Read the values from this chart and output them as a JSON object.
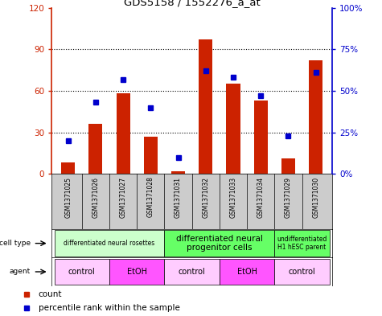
{
  "title": "GDS5158 / 1552276_a_at",
  "samples": [
    "GSM1371025",
    "GSM1371026",
    "GSM1371027",
    "GSM1371028",
    "GSM1371031",
    "GSM1371032",
    "GSM1371033",
    "GSM1371034",
    "GSM1371029",
    "GSM1371030"
  ],
  "counts": [
    8,
    36,
    58,
    27,
    2,
    97,
    65,
    53,
    11,
    82
  ],
  "percentiles": [
    20,
    43,
    57,
    40,
    10,
    62,
    58,
    47,
    23,
    61
  ],
  "ylim_left": [
    0,
    120
  ],
  "ylim_right": [
    0,
    100
  ],
  "yticks_left": [
    0,
    30,
    60,
    90,
    120
  ],
  "yticks_right": [
    0,
    25,
    50,
    75,
    100
  ],
  "ytick_labels_left": [
    "0",
    "30",
    "60",
    "90",
    "120"
  ],
  "ytick_labels_right": [
    "0%",
    "25%",
    "50%",
    "75%",
    "100%"
  ],
  "bar_color": "#cc2200",
  "percentile_color": "#0000cc",
  "bar_width": 0.5,
  "cell_type_groups": [
    {
      "label": "differentiated neural rosettes",
      "start": 0,
      "end": 3,
      "color": "#ccffcc",
      "fontsize": 5.5
    },
    {
      "label": "differentiated neural\nprogenitor cells",
      "start": 4,
      "end": 7,
      "color": "#66ff66",
      "fontsize": 7.5
    },
    {
      "label": "undifferentiated\nH1 hESC parent",
      "start": 8,
      "end": 9,
      "color": "#66ff66",
      "fontsize": 5.5
    }
  ],
  "agent_groups": [
    {
      "label": "control",
      "start": 0,
      "end": 1,
      "color": "#ffccff"
    },
    {
      "label": "EtOH",
      "start": 2,
      "end": 3,
      "color": "#ff55ff"
    },
    {
      "label": "control",
      "start": 4,
      "end": 5,
      "color": "#ffccff"
    },
    {
      "label": "EtOH",
      "start": 6,
      "end": 7,
      "color": "#ff55ff"
    },
    {
      "label": "control",
      "start": 8,
      "end": 9,
      "color": "#ffccff"
    }
  ],
  "cell_type_label": "cell type",
  "agent_label": "agent",
  "legend_count_label": "count",
  "legend_percentile_label": "percentile rank within the sample",
  "grid_yticks": [
    30,
    60,
    90
  ]
}
